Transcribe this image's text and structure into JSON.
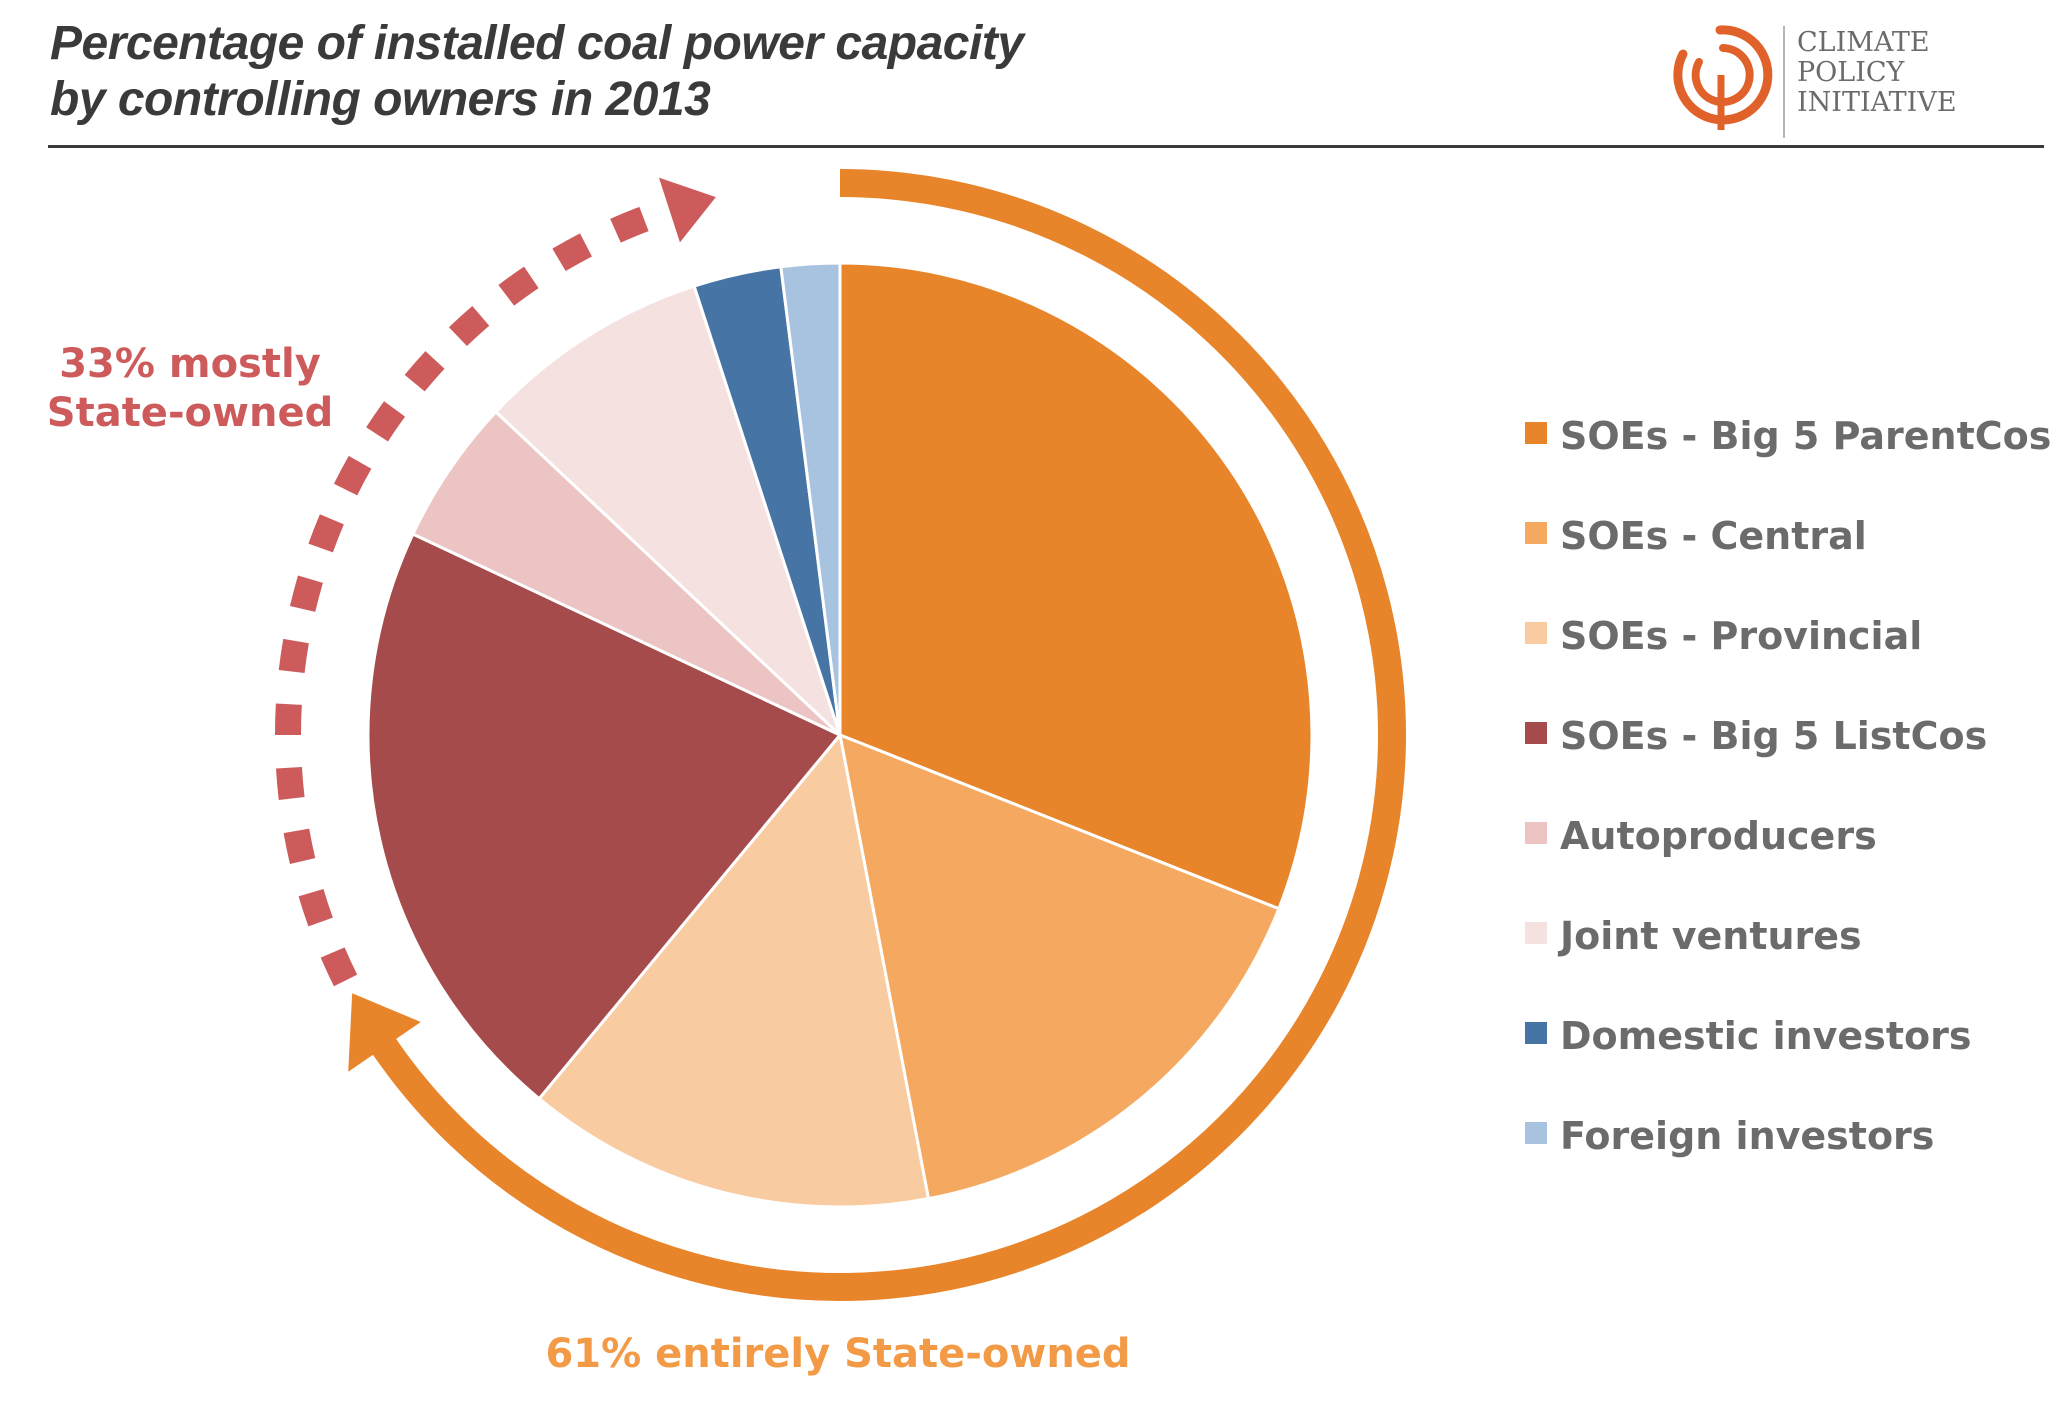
{
  "title": {
    "line1": "Percentage of installed coal power capacity",
    "line2": "by controlling owners in 2013"
  },
  "logo": {
    "line1": "CLIMATE",
    "line2": "POLICY",
    "line3": "INITIATIVE",
    "icon": "climate-policy-initiative-logo-icon",
    "color": "#e0622a"
  },
  "annotations": {
    "mostly_state_line1": "33% mostly",
    "mostly_state_line2": "State-owned",
    "entirely_state": "61% entirely State-owned",
    "mostly_color": "#cd5b5b",
    "entirely_color": "#e8852a",
    "entirely_text_color": "#f29a45"
  },
  "chart_data": {
    "type": "pie",
    "start": "12 o'clock",
    "direction": "clockwise",
    "series": [
      {
        "name": "SOEs - Big 5 ParentCos",
        "value": 31,
        "color": "#e8852a"
      },
      {
        "name": "SOEs - Central",
        "value": 16,
        "color": "#f5a960"
      },
      {
        "name": "SOEs - Provincial",
        "value": 14,
        "color": "#f9cba1"
      },
      {
        "name": "SOEs - Big 5 ListCos",
        "value": 21,
        "color": "#a64b4b"
      },
      {
        "name": "Autoproducers",
        "value": 5,
        "color": "#ecc4c4"
      },
      {
        "name": "Joint ventures",
        "value": 8,
        "color": "#f6e1e1"
      },
      {
        "name": "Domestic investors",
        "value": 3,
        "color": "#4674a4"
      },
      {
        "name": "Foreign investors",
        "value": 2,
        "color": "#a7c3e0"
      }
    ],
    "legend": "right"
  }
}
